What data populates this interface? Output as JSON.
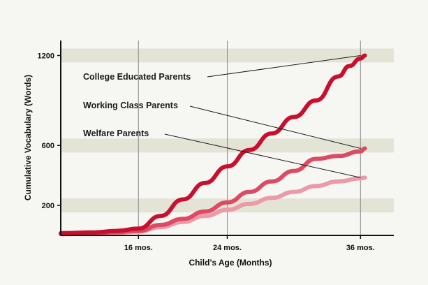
{
  "chart_data": {
    "type": "line",
    "xlabel": "Child’s Age (Months)",
    "ylabel": "Cumulative Vocabulary (Words)",
    "x_ticks": [
      {
        "value": 16,
        "label": "16 mos."
      },
      {
        "value": 24,
        "label": "24 mos."
      },
      {
        "value": 36,
        "label": "36 mos."
      }
    ],
    "y_ticks": [
      {
        "value": 200,
        "label": "200"
      },
      {
        "value": 600,
        "label": "600"
      },
      {
        "value": 1200,
        "label": "1200"
      }
    ],
    "xlim": [
      9,
      39
    ],
    "ylim": [
      0,
      1300
    ],
    "grid": true,
    "colors": {
      "College Educated Parents": "#c8102e",
      "Working Class Parents": "#dc4a63",
      "Welfare Parents": "#eb9aa7",
      "band": "#e4e4d6",
      "axis": "#111111"
    },
    "series": [
      {
        "name": "College Educated Parents",
        "x": [
          9,
          12,
          14,
          16,
          18,
          20,
          22,
          24,
          26,
          28,
          30,
          32,
          34,
          35,
          36,
          36.4
        ],
        "y": [
          15,
          20,
          30,
          45,
          130,
          240,
          350,
          460,
          570,
          680,
          790,
          900,
          1060,
          1130,
          1180,
          1200
        ]
      },
      {
        "name": "Working Class Parents",
        "x": [
          9,
          12,
          14,
          16,
          18,
          20,
          22,
          24,
          26,
          28,
          30,
          32,
          34,
          36,
          36.4
        ],
        "y": [
          10,
          15,
          22,
          30,
          70,
          110,
          160,
          220,
          290,
          360,
          430,
          510,
          530,
          560,
          580
        ]
      },
      {
        "name": "Welfare Parents",
        "x": [
          9,
          12,
          14,
          16,
          18,
          20,
          22,
          24,
          26,
          28,
          30,
          32,
          34,
          36,
          36.4
        ],
        "y": [
          8,
          12,
          18,
          25,
          55,
          90,
          130,
          170,
          210,
          250,
          290,
          330,
          360,
          380,
          385
        ]
      }
    ],
    "annotations": [
      {
        "text": "College Educated Parents",
        "series": "College Educated Parents"
      },
      {
        "text": "Working Class Parents",
        "series": "Working Class Parents"
      },
      {
        "text": "Welfare Parents",
        "series": "Welfare Parents"
      }
    ]
  }
}
